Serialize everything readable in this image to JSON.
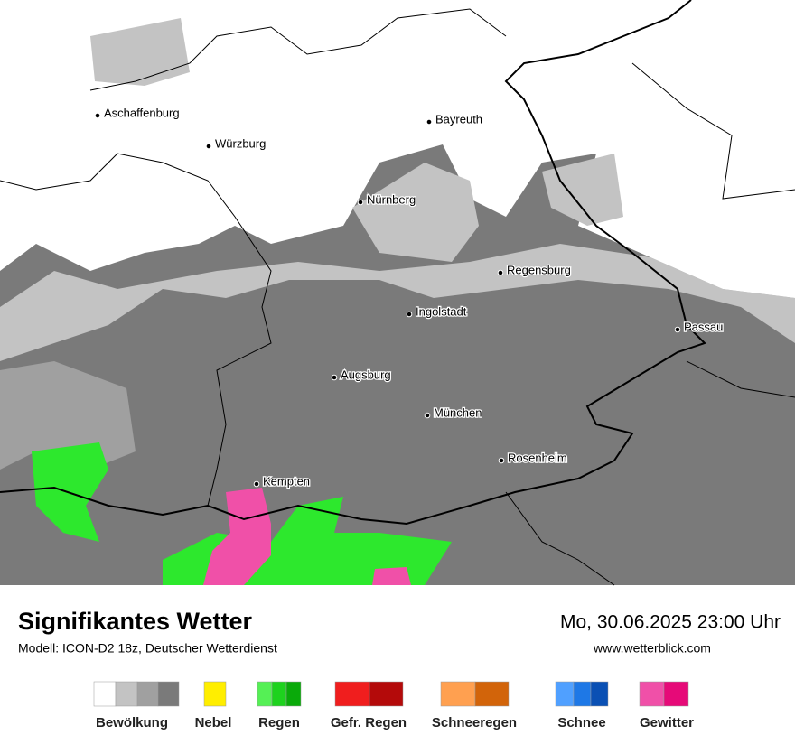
{
  "map": {
    "cities": [
      "Aschaffenburg",
      "Würzburg",
      "Bayreuth",
      "Nürnberg",
      "Regensburg",
      "Ingolstadt",
      "Passau",
      "Augsburg",
      "München",
      "Rosenheim",
      "Kempten"
    ]
  },
  "footer": {
    "title": "Signifikantes Wetter",
    "subtitle": "Modell: ICON-D2 18z, Deutscher Wetterdienst",
    "datetime": "Mo, 30.06.2025 23:00 Uhr",
    "website": "www.wetterblick.com"
  },
  "legend": [
    "Bewölkung",
    "Nebel",
    "Regen",
    "Gefr. Regen",
    "Schneeregen",
    "Schnee",
    "Gewitter"
  ]
}
